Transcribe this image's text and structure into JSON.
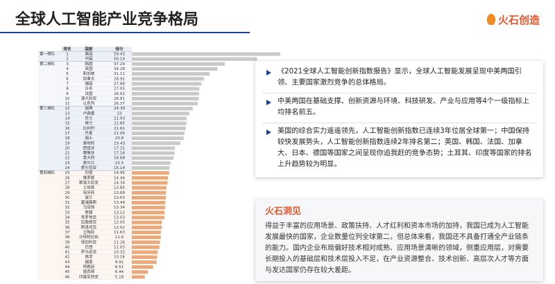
{
  "header": {
    "title": "全球人工智能产业竞争格局",
    "logo": "火石创造"
  },
  "table": {
    "columns": [
      "排名",
      "国家",
      "得分"
    ],
    "tiers": [
      {
        "label": "第一梯队",
        "bar_color": "#c9c9c9",
        "rows": [
          [
            1,
            "美国",
            59.43
          ],
          [
            2,
            "中国",
            50.14
          ]
        ]
      },
      {
        "label": "第二梯队",
        "bar_color": "#c9c9c9",
        "rows": [
          [
            3,
            "韩国",
            37.29
          ],
          [
            4,
            "英国",
            34.28
          ],
          [
            5,
            "新加坡",
            31.11
          ],
          [
            6,
            "加拿大",
            28.92
          ],
          [
            7,
            "德国",
            27.88
          ],
          [
            8,
            "日本",
            27.05
          ],
          [
            9,
            "法国",
            26.91
          ],
          [
            10,
            "澳大利亚",
            26.81
          ],
          [
            11,
            "以色列",
            26.37
          ]
        ]
      },
      {
        "label": "第三梯队",
        "bar_color": "#c9c9c9",
        "rows": [
          [
            12,
            "瑞典",
            24.39
          ],
          [
            13,
            "卢森堡",
            23.0
          ],
          [
            14,
            "芬兰",
            21.93
          ],
          [
            15,
            "荷兰",
            21.85
          ],
          [
            16,
            "比利时",
            21.61
          ],
          [
            17,
            "丹麦",
            21.06
          ],
          [
            18,
            "瑞士",
            20.8
          ],
          [
            19,
            "奥地利",
            19.43
          ],
          [
            20,
            "西班牙",
            17.31
          ],
          [
            21,
            "葡萄牙",
            17.16
          ],
          [
            22,
            "意大利",
            16.68
          ],
          [
            23,
            "爱尔兰",
            15.5
          ],
          [
            24,
            "爱沙尼亚",
            15.14
          ]
        ]
      },
      {
        "label": "第四梯队",
        "bar_color": "#eba878",
        "rows": [
          [
            25,
            "印度",
            14.95
          ],
          [
            26,
            "俄罗斯",
            14.44
          ],
          [
            27,
            "斯洛文尼亚",
            14.34
          ],
          [
            28,
            "土耳其",
            13.85
          ],
          [
            29,
            "匈牙利",
            13.68
          ],
          [
            30,
            "波兰",
            13.63
          ],
          [
            31,
            "塞浦路斯",
            13.44
          ],
          [
            32,
            "马耳他",
            13.34
          ],
          [
            33,
            "希腊",
            13.12
          ],
          [
            34,
            "克罗地亚",
            13.03
          ],
          [
            35,
            "拉脱维亚",
            12.05
          ],
          [
            36,
            "斯洛伐克",
            12.02
          ],
          [
            37,
            "立陶宛",
            11.63
          ],
          [
            38,
            "沙特阿拉伯",
            11.6
          ],
          [
            39,
            "保加利亚",
            11.26
          ],
          [
            40,
            "巴西",
            11.03
          ],
          [
            41,
            "罗马尼亚",
            10.32
          ],
          [
            42,
            "南非",
            10.16
          ],
          [
            43,
            "越南",
            9.91
          ],
          [
            44,
            "阿根廷",
            8.51
          ],
          [
            45,
            "墨西哥",
            6.44
          ],
          [
            46,
            "印度尼西亚",
            5.18
          ]
        ]
      }
    ]
  },
  "bullets": [
    "《2021全球人工智能创新指数报告》显示，全球人工智能发展呈现中美两国引领、主要国家激烈竞争的总体格局。",
    "中美两国在基础支撑、创新资源与环境、科技研发、产业与应用等4个一级指标上均排名前五。",
    "美国的综合实力遥遥领先，人工智能创新指数已连续3年位居全球第一；中国保持较快发展势头，人工智能创新指数连续2年排名第二；英国、韩国、法国、加拿大、日本、德国等国家之间呈现你追我赶的竞争态势；土耳其、印度等国家的排名上升趋势较为明显。"
  ],
  "insight": {
    "title": "火石洞见",
    "text": "得益于丰富的应用场景、政策扶持、人才红利和资本市场的加持，我国已成为人工智能发展最快的国家，企业数量位列全球第二，但总体来看，我国还不具备打通全产业链条的能力。国内企业布局偏好技术相对成熟、应用场景清晰的领域，侧重应用层，对需要长期投入的基础层和技术层投入不足，在产业资源整合、技术创新、高层次人才等方面与发达国家仍存在较大差距。"
  }
}
